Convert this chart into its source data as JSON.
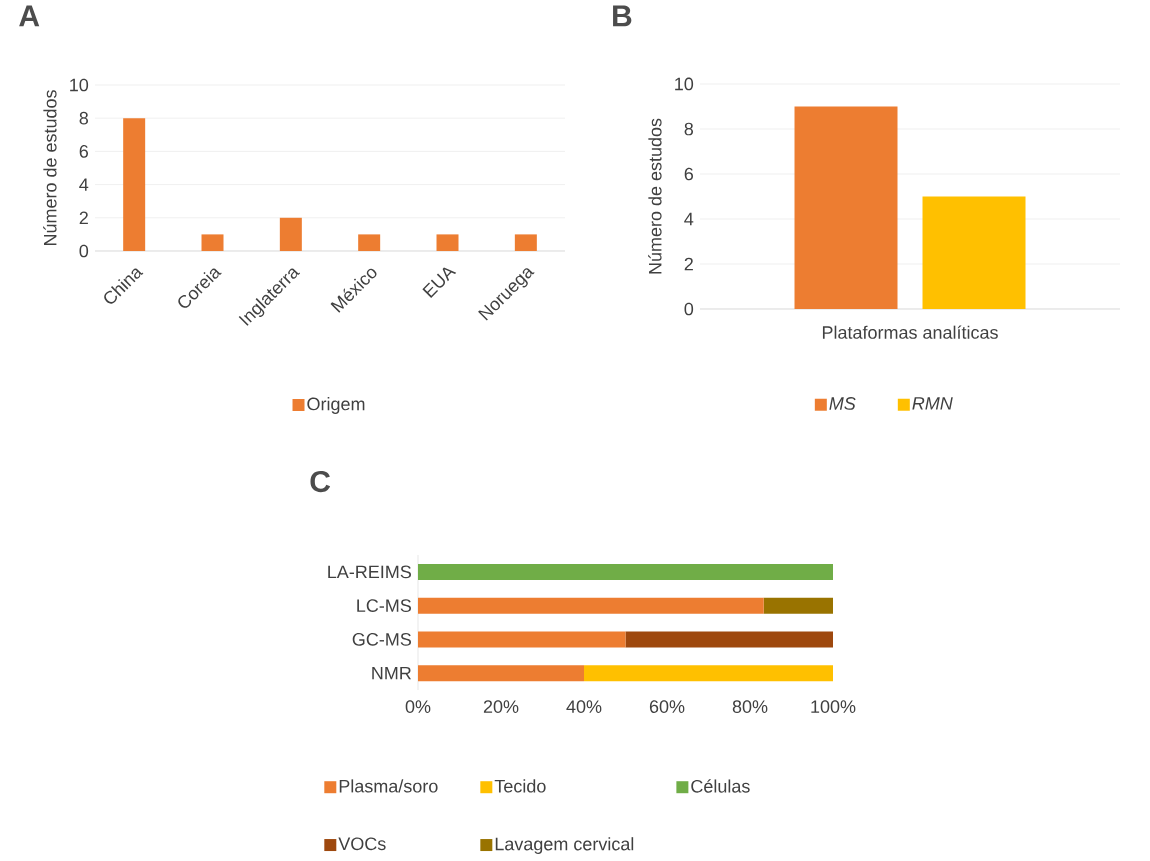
{
  "chart_data": [
    {
      "type": "bar",
      "title": "A",
      "ylabel": "Número de estudos",
      "categories": [
        "China",
        "Coreia",
        "Inglaterra",
        "México",
        "EUA",
        "Noruega"
      ],
      "series": [
        {
          "name": "Origem",
          "color": "#ed7d31",
          "values": [
            8,
            1,
            2,
            1,
            1,
            1
          ]
        }
      ],
      "ylim": [
        0,
        10
      ],
      "yticks": [
        0,
        2,
        4,
        6,
        8,
        10
      ],
      "grid": "y",
      "legend": "bottom"
    },
    {
      "type": "bar",
      "title": "B",
      "ylabel": "Número de estudos",
      "categories": [
        "Plataformas analíticas"
      ],
      "series": [
        {
          "name": "*MS*",
          "color": "#ed7d31",
          "values": [
            9
          ]
        },
        {
          "name": "*RMN*",
          "color": "#ffc000",
          "values": [
            5
          ]
        }
      ],
      "ylim": [
        0,
        10
      ],
      "yticks": [
        0,
        2,
        4,
        6,
        8,
        10
      ],
      "grid": "y",
      "legend": "bottom"
    },
    {
      "type": "bar",
      "title": "C",
      "orientation": "horizontal",
      "stacked": true,
      "categories": [
        "LA-REIMS",
        "LC-MS",
        "GC-MS",
        "NMR"
      ],
      "series": [
        {
          "name": "Plasma/soro",
          "color": "#ed7d31",
          "values": [
            0,
            83.3,
            50,
            40
          ]
        },
        {
          "name": "Tecido",
          "color": "#ffc000",
          "values": [
            0,
            0,
            0,
            60
          ]
        },
        {
          "name": "Células",
          "color": "#70ad47",
          "values": [
            100,
            0,
            0,
            0
          ]
        },
        {
          "name": "VOCs",
          "color": "#9e480e",
          "values": [
            0,
            0,
            50,
            0
          ]
        },
        {
          "name": "Lavagem cervical",
          "color": "#997300",
          "values": [
            0,
            16.7,
            0,
            0
          ]
        }
      ],
      "xlim": [
        0,
        100
      ],
      "xticks": [
        {
          "value": 0,
          "label": "0%"
        },
        {
          "value": 20,
          "label": "20%"
        },
        {
          "value": 40,
          "label": "40%"
        },
        {
          "value": 60,
          "label": "60%"
        },
        {
          "value": 80,
          "label": "80%"
        },
        {
          "value": 100,
          "label": "100%"
        }
      ],
      "legend": "bottom"
    }
  ]
}
